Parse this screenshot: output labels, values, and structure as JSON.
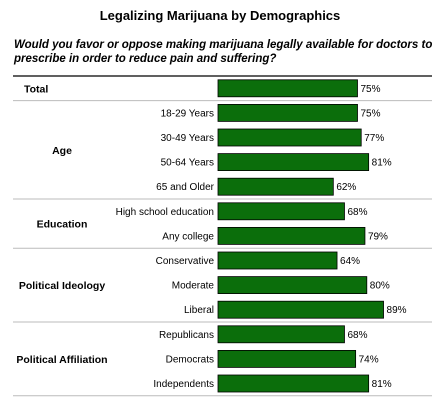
{
  "chart_data": {
    "type": "bar",
    "orientation": "horizontal",
    "title": "Legalizing Marijuana by Demographics",
    "subtitle": "Would you favor or oppose making marijuana legally available for doctors to prescribe in order to reduce pain and suffering?",
    "value_suffix": "%",
    "xlim": [
      0,
      100
    ],
    "grid": false,
    "bar_color": "#0b6e0b",
    "groups": [
      {
        "label": "Total",
        "items": [
          {
            "label": "",
            "value": 75
          }
        ]
      },
      {
        "label": "Age",
        "items": [
          {
            "label": "18-29 Years",
            "value": 75
          },
          {
            "label": "30-49 Years",
            "value": 77
          },
          {
            "label": "50-64 Years",
            "value": 81
          },
          {
            "label": "65 and Older",
            "value": 62
          }
        ]
      },
      {
        "label": "Education",
        "items": [
          {
            "label": "High school education",
            "value": 68
          },
          {
            "label": "Any college",
            "value": 79
          }
        ]
      },
      {
        "label": "Political Ideology",
        "items": [
          {
            "label": "Conservative",
            "value": 64
          },
          {
            "label": "Moderate",
            "value": 80
          },
          {
            "label": "Liberal",
            "value": 89
          }
        ]
      },
      {
        "label": "Political Affiliation",
        "items": [
          {
            "label": "Republicans",
            "value": 68
          },
          {
            "label": "Democrats",
            "value": 74
          },
          {
            "label": "Independents",
            "value": 81
          }
        ]
      }
    ]
  }
}
